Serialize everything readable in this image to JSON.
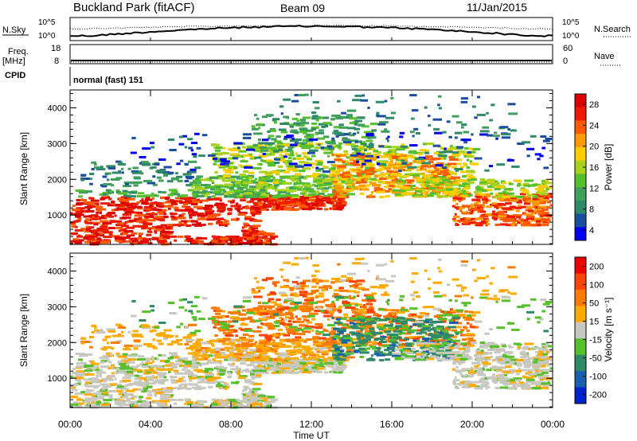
{
  "header": {
    "station": "Buckland Park (fitACF)",
    "beam": "Beam 09",
    "date": "11/Jan/2015"
  },
  "noise_panel": {
    "left_label": "N.Sky",
    "right_label": "N.Search",
    "left_ticks": [
      "10^5",
      "10^0"
    ],
    "right_ticks": [
      "10^5",
      "10^0"
    ]
  },
  "freq_panel": {
    "left_label_1": "Freq.",
    "left_label_2": "[MHz]",
    "right_label": "Nave",
    "left_ticks": [
      "18",
      "8"
    ],
    "right_ticks": [
      "60",
      "0"
    ]
  },
  "cpid": {
    "label": "CPID",
    "value": "normal (fast) 151"
  },
  "colors": {
    "power": [
      "#0000ee",
      "#1c4ea0",
      "#2f8a67",
      "#3fa05b",
      "#55c02a",
      "#a8d21c",
      "#ffcc00",
      "#ff9a00",
      "#ff5a00",
      "#ee1a00",
      "#dd0000"
    ],
    "velocity": [
      "#0022cc",
      "#1a5eb0",
      "#2f8a67",
      "#55c02a",
      "#c8c8c0",
      "#ffaa00",
      "#ff7a00",
      "#ff4400",
      "#ee0000"
    ]
  },
  "chart_data": [
    {
      "type": "heatmap",
      "panel": "power",
      "xlabel": "",
      "ylabel": "Slant Range [km]",
      "xlim": [
        0,
        24
      ],
      "ylim": [
        180,
        4500
      ],
      "y_ticks": [
        "1000",
        "2000",
        "3000",
        "4000"
      ],
      "colorbar_label": "Power [dB]",
      "colorbar_ticks": [
        "4",
        "8",
        "12",
        "16",
        "20",
        "24",
        "28"
      ]
    },
    {
      "type": "heatmap",
      "panel": "velocity",
      "xlabel": "Time UT",
      "ylabel": "Slant Range [km]",
      "xlim": [
        0,
        24
      ],
      "ylim": [
        180,
        4500
      ],
      "y_ticks": [
        "1000",
        "2000",
        "3000",
        "4000"
      ],
      "x_ticks": [
        "00:00",
        "04:00",
        "08:00",
        "12:00",
        "16:00",
        "20:00",
        "00:00"
      ],
      "colorbar_label": "Velocity [m s⁻¹]",
      "colorbar_ticks": [
        "200",
        "100",
        "50",
        "15",
        "-15",
        "-50",
        "-100",
        "-200"
      ]
    }
  ]
}
